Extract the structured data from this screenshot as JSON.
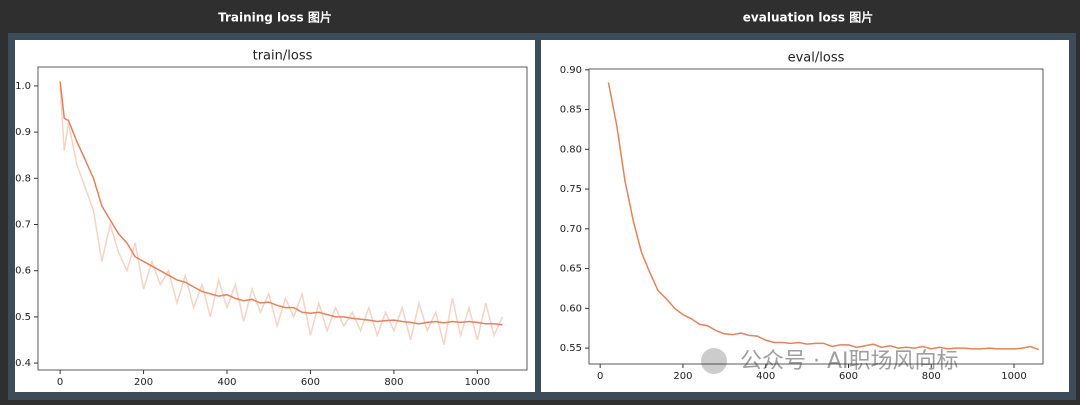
{
  "headers": [
    "Training loss 图片",
    "evaluation loss 图片"
  ],
  "watermark": "公众号 · AI职场风向标",
  "chart_data": [
    {
      "type": "line",
      "title": "train/loss",
      "x": [
        0,
        10,
        20,
        40,
        60,
        80,
        100,
        120,
        140,
        160,
        180,
        200,
        220,
        240,
        260,
        280,
        300,
        320,
        340,
        360,
        380,
        400,
        420,
        440,
        460,
        480,
        500,
        520,
        540,
        560,
        580,
        600,
        620,
        640,
        660,
        680,
        700,
        720,
        740,
        760,
        780,
        800,
        820,
        840,
        860,
        880,
        900,
        920,
        940,
        960,
        980,
        1000,
        1020,
        1040,
        1060
      ],
      "series": [
        {
          "color": "#f7d3c4",
          "values": [
            1.0,
            0.86,
            0.92,
            0.83,
            0.78,
            0.73,
            0.62,
            0.7,
            0.64,
            0.6,
            0.66,
            0.56,
            0.62,
            0.57,
            0.6,
            0.53,
            0.59,
            0.52,
            0.57,
            0.5,
            0.58,
            0.52,
            0.57,
            0.49,
            0.56,
            0.51,
            0.55,
            0.48,
            0.54,
            0.5,
            0.55,
            0.46,
            0.53,
            0.47,
            0.52,
            0.48,
            0.51,
            0.47,
            0.52,
            0.46,
            0.51,
            0.47,
            0.52,
            0.45,
            0.53,
            0.47,
            0.51,
            0.44,
            0.54,
            0.46,
            0.52,
            0.45,
            0.53,
            0.46,
            0.5
          ]
        },
        {
          "color": "#e5825c",
          "values": [
            1.01,
            0.93,
            0.925,
            0.88,
            0.84,
            0.8,
            0.74,
            0.71,
            0.68,
            0.66,
            0.63,
            0.62,
            0.61,
            0.6,
            0.59,
            0.58,
            0.575,
            0.565,
            0.555,
            0.55,
            0.545,
            0.548,
            0.54,
            0.535,
            0.538,
            0.53,
            0.532,
            0.525,
            0.52,
            0.52,
            0.51,
            0.508,
            0.51,
            0.505,
            0.5,
            0.5,
            0.497,
            0.495,
            0.493,
            0.49,
            0.492,
            0.493,
            0.49,
            0.488,
            0.485,
            0.488,
            0.49,
            0.487,
            0.49,
            0.488,
            0.49,
            0.488,
            0.485,
            0.485,
            0.483
          ]
        }
      ],
      "xlim": [
        -53,
        1119
      ],
      "xticks": [
        0,
        200,
        400,
        600,
        800,
        1000
      ],
      "ylim": [
        0.385,
        1.041
      ],
      "yticks": [
        0.4,
        0.5,
        0.6,
        0.7,
        0.8,
        0.9,
        {
          "value": 1,
          "label": "1.0"
        }
      ]
    },
    {
      "type": "line",
      "title": "eval/loss",
      "x": [
        20,
        40,
        60,
        80,
        100,
        120,
        140,
        160,
        180,
        200,
        220,
        240,
        260,
        280,
        300,
        320,
        340,
        360,
        380,
        400,
        420,
        440,
        460,
        480,
        500,
        520,
        540,
        560,
        580,
        600,
        620,
        640,
        660,
        680,
        700,
        720,
        740,
        760,
        780,
        800,
        820,
        840,
        860,
        880,
        900,
        920,
        940,
        960,
        980,
        1000,
        1020,
        1040,
        1060
      ],
      "series": [
        {
          "color": "#e5825c",
          "values": [
            0.884,
            0.83,
            0.76,
            0.71,
            0.67,
            0.645,
            0.622,
            0.612,
            0.6,
            0.592,
            0.587,
            0.58,
            0.578,
            0.572,
            0.568,
            0.567,
            0.569,
            0.566,
            0.565,
            0.56,
            0.557,
            0.557,
            0.556,
            0.557,
            0.555,
            0.556,
            0.556,
            0.552,
            0.554,
            0.554,
            0.551,
            0.553,
            0.555,
            0.551,
            0.553,
            0.55,
            0.551,
            0.55,
            0.552,
            0.549,
            0.551,
            0.549,
            0.55,
            0.55,
            0.549,
            0.549,
            0.55,
            0.549,
            0.549,
            0.549,
            0.55,
            0.552,
            0.548
          ]
        }
      ],
      "xlim": [
        -27,
        1070
      ],
      "xticks": [
        0,
        200,
        400,
        600,
        800,
        1000
      ],
      "ylim": [
        0.53,
        0.901
      ],
      "yticks": [
        0.55,
        {
          "value": 0.6,
          "label": "0.60"
        },
        0.65,
        {
          "value": 0.7,
          "label": "0.70"
        },
        0.75,
        {
          "value": 0.8,
          "label": "0.80"
        },
        0.85,
        {
          "value": 0.9,
          "label": "0.90"
        }
      ]
    }
  ]
}
